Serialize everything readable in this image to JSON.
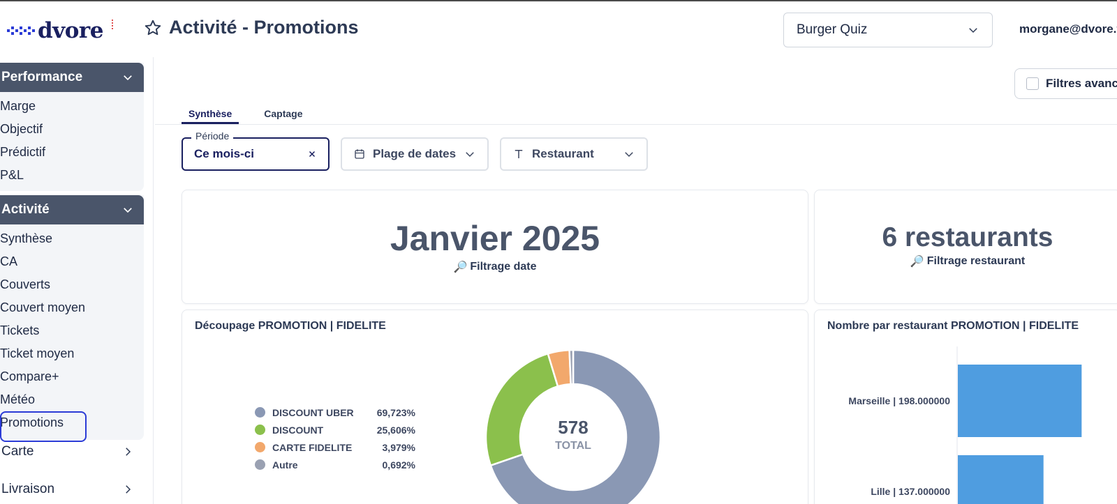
{
  "header": {
    "logo_text": "dvore",
    "page_title": "Activité - Promotions",
    "org_select": {
      "value": "Burger Quiz"
    },
    "user_email": "morgane@dvore.f"
  },
  "sidebar": {
    "groups": [
      {
        "label": "Performance",
        "items": [
          "Marge",
          "Objectif",
          "Prédictif",
          "P&L"
        ]
      },
      {
        "label": "Activité",
        "items": [
          "Synthèse",
          "CA",
          "Couverts",
          "Couvert moyen",
          "Tickets",
          "Ticket moyen",
          "Compare+",
          "Météo",
          "Promotions"
        ],
        "active_index": 8
      }
    ],
    "collapsed": [
      "Carte",
      "Livraison"
    ]
  },
  "main": {
    "advanced_filters_label": "Filtres avancé",
    "tabs": [
      {
        "label": "Synthèse",
        "active": true
      },
      {
        "label": "Captage",
        "active": false
      }
    ],
    "filters": {
      "periode_legend": "Période",
      "periode_value": "Ce mois-ci",
      "dates_label": "Plage de dates",
      "restaurant_label": "Restaurant"
    },
    "kpi_date": {
      "value": "Janvier 2025",
      "sub": "Filtrage date"
    },
    "kpi_resto": {
      "value": "6 restaurants",
      "sub": "Filtrage restaurant"
    }
  },
  "chart_data": [
    {
      "type": "pie",
      "title": "Découpage PROMOTION | FIDELITE",
      "total_value": "578",
      "total_label": "TOTAL",
      "slices": [
        {
          "name": "DISCOUNT UBER",
          "label": "69,723%",
          "value": 69.723,
          "color": "#8a98b4"
        },
        {
          "name": "DISCOUNT",
          "label": "25,606%",
          "value": 25.606,
          "color": "#8bc04c"
        },
        {
          "name": "CARTE FIDELITE",
          "label": "3,979%",
          "value": 3.979,
          "color": "#f2a86c"
        },
        {
          "name": "Autre",
          "label": "0,692%",
          "value": 0.692,
          "color": "#9aa1b2"
        }
      ]
    },
    {
      "type": "bar",
      "title": "Nombre par restaurant PROMOTION | FIDELITE",
      "orientation": "horizontal",
      "color": "#4f9de0",
      "categories": [
        "Marseille | 198.000000",
        "Lille | 137.000000"
      ],
      "values": [
        198,
        137
      ],
      "xlim": [
        0,
        230
      ]
    }
  ]
}
